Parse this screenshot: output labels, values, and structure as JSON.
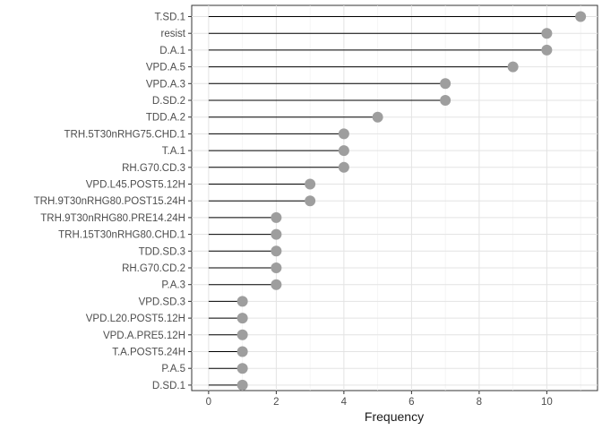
{
  "chart_data": {
    "type": "lollipop",
    "title": "",
    "xlabel": "Frequency",
    "ylabel": "",
    "xlim": [
      -0.5,
      11.5
    ],
    "xticks": [
      0,
      2,
      4,
      6,
      8,
      10
    ],
    "grid": true,
    "point_color": "#9e9e9e",
    "stem_color": "#000000",
    "categories": [
      "T.SD.1",
      "resist",
      "D.A.1",
      "VPD.A.5",
      "VPD.A.3",
      "D.SD.2",
      "TDD.A.2",
      "TRH.5T30nRHG75.CHD.1",
      "T.A.1",
      "RH.G70.CD.3",
      "VPD.L45.POST5.12H",
      "TRH.9T30nRHG80.POST15.24H",
      "TRH.9T30nRHG80.PRE14.24H",
      "TRH.15T30nRHG80.CHD.1",
      "TDD.SD.3",
      "RH.G70.CD.2",
      "P.A.3",
      "VPD.SD.3",
      "VPD.L20.POST5.12H",
      "VPD.A.PRE5.12H",
      "T.A.POST5.24H",
      "P.A.5",
      "D.SD.1"
    ],
    "values": [
      11,
      10,
      10,
      9,
      7,
      7,
      5,
      4,
      4,
      4,
      3,
      3,
      2,
      2,
      2,
      2,
      2,
      1,
      1,
      1,
      1,
      1,
      1
    ]
  }
}
